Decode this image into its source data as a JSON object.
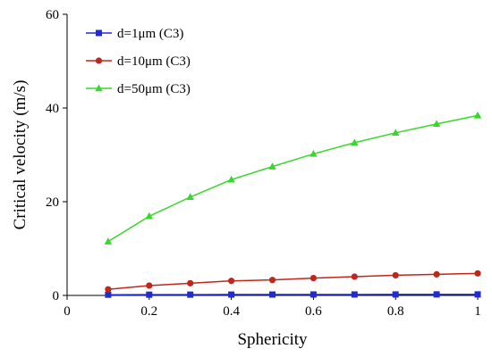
{
  "chart_data": {
    "type": "line",
    "xlabel": "Sphericity",
    "ylabel": "Critical velocity (m/s)",
    "xlim": [
      0,
      1
    ],
    "ylim": [
      0,
      60
    ],
    "x_ticks": [
      "0",
      "0.2",
      "0.4",
      "0.6",
      "0.8",
      "1"
    ],
    "y_ticks": [
      "0",
      "20",
      "40",
      "60"
    ],
    "grid": false,
    "legend_position": "top-left",
    "x": [
      0.1,
      0.2,
      0.3,
      0.4,
      0.5,
      0.6,
      0.7,
      0.8,
      0.9,
      1.0
    ],
    "series": [
      {
        "name": "d=1μm (C3)",
        "color": "#1f2bd6",
        "marker": "square",
        "values": [
          0.15,
          0.16,
          0.17,
          0.18,
          0.19,
          0.2,
          0.2,
          0.21,
          0.22,
          0.22
        ]
      },
      {
        "name": "d=10μm (C3)",
        "color": "#c0261c",
        "marker": "circle",
        "values": [
          1.3,
          2.1,
          2.6,
          3.1,
          3.3,
          3.7,
          4.0,
          4.3,
          4.5,
          4.7
        ]
      },
      {
        "name": "d=50μm  (C3)",
        "color": "#36d92a",
        "marker": "triangle",
        "values": [
          11.5,
          16.9,
          21.0,
          24.7,
          27.5,
          30.2,
          32.6,
          34.7,
          36.6,
          38.4
        ]
      }
    ]
  }
}
